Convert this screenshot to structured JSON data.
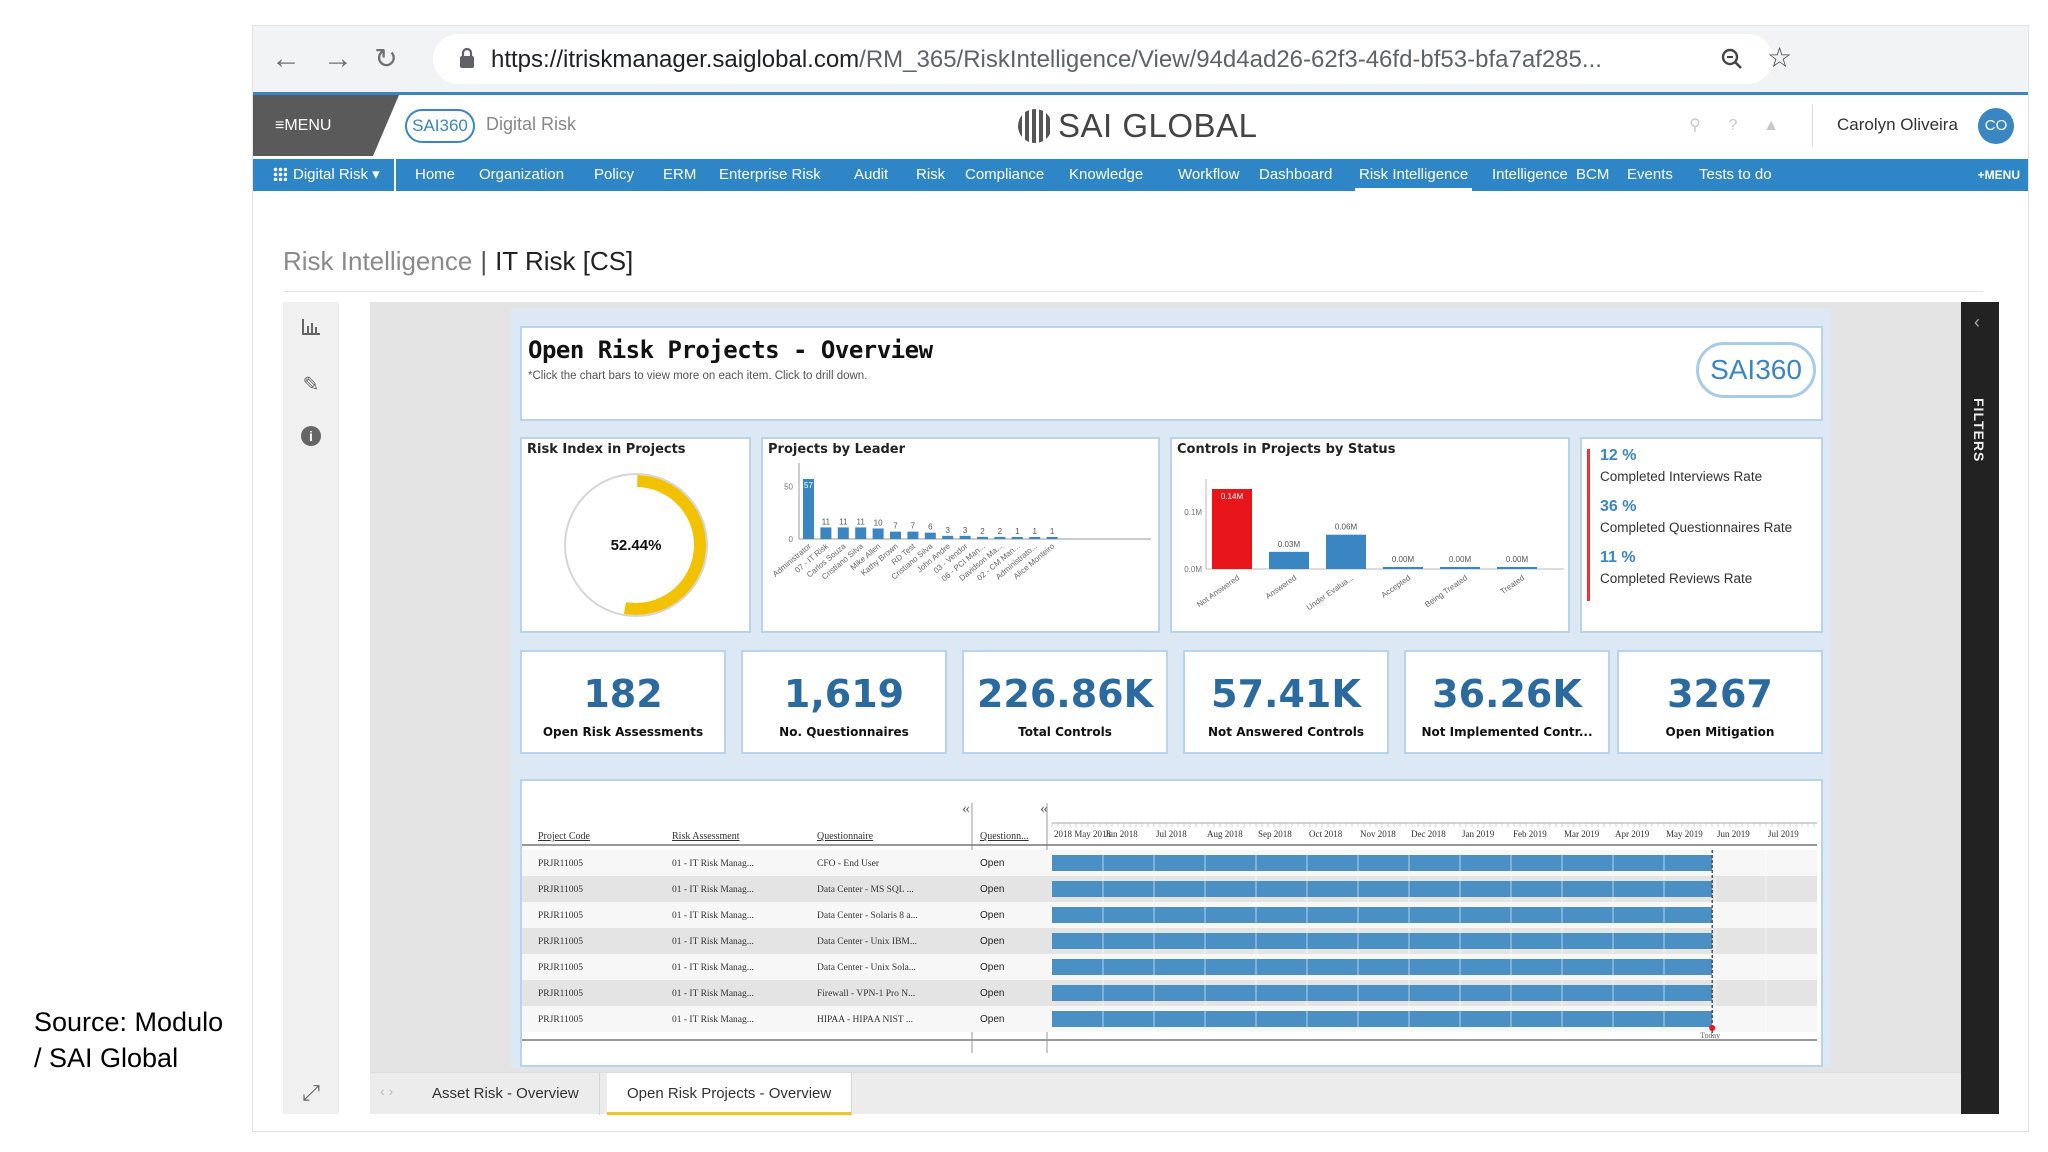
{
  "caption": {
    "line1": "Source: Modulo",
    "line2": "/ SAI Global"
  },
  "browser": {
    "url_main": "https://itriskmanager.saiglobal.com",
    "url_rest": "/RM_365/RiskIntelligence/View/94d4ad26-62f3-46fd-bf53-bfa7af285..."
  },
  "app_header": {
    "menu_label": "≡MENU",
    "logo_small": "SAI360",
    "product": "Digital Risk",
    "brand": "SAI GLOBAL",
    "user_name": "Carolyn Oliveira",
    "user_initials": "CO"
  },
  "nav": {
    "module": "Digital Risk",
    "items": [
      "Home",
      "Organization",
      "Policy",
      "ERM",
      "Enterprise Risk",
      "Audit",
      "Risk",
      "Compliance",
      "Knowledge",
      "Workflow",
      "Dashboard",
      "Risk Intelligence",
      "Intelligence",
      "BCM",
      "Events",
      "Tests to do"
    ],
    "active": "Risk Intelligence",
    "plus_menu": "+MENU"
  },
  "page": {
    "crumb": "Risk Intelligence",
    "separator": "|",
    "current": "IT Risk [CS]"
  },
  "dashboard": {
    "title": "Open Risk Projects - Overview",
    "subtitle": "*Click the chart bars to view more on each item. Click to drill down.",
    "logo": "SAI360"
  },
  "risk_index": {
    "title": "Risk Index in Projects",
    "value_label": "52.44%",
    "value": 52.44
  },
  "rates": [
    {
      "value": "12 %",
      "label": "Completed Interviews Rate"
    },
    {
      "value": "36 %",
      "label": "Completed Questionnaires Rate"
    },
    {
      "value": "11 %",
      "label": "Completed Reviews Rate"
    }
  ],
  "kpis": [
    {
      "value": "182",
      "label": "Open Risk Assessments"
    },
    {
      "value": "1,619",
      "label": "No. Questionnaires"
    },
    {
      "value": "226.86K",
      "label": "Total Controls"
    },
    {
      "value": "57.41K",
      "label": "Not Answered Controls"
    },
    {
      "value": "36.26K",
      "label": "Not Implemented Contr..."
    },
    {
      "value": "3267",
      "label": "Open Mitigation"
    }
  ],
  "chart_data": [
    {
      "type": "bar",
      "title": "Projects by Leader",
      "categories": [
        "Administrator",
        "07 - IT Risk",
        "Carlos Souza",
        "Cristiano Silva",
        "Mike Allen",
        "Kathy Brown",
        "RD Test",
        "Cristiano Silva",
        "John Andre",
        "03 - Vendor",
        "06 - PCI Man...",
        "Davidson Ma...",
        "02 - CM Man...",
        "Administrato...",
        "Alice Monteiro"
      ],
      "values": [
        57,
        11,
        11,
        11,
        10,
        7,
        7,
        6,
        3,
        3,
        2,
        2,
        1,
        1,
        1
      ],
      "yticks": [
        0,
        50
      ],
      "color": "#3a86c3"
    },
    {
      "type": "bar",
      "title": "Controls in Projects by Status",
      "categories": [
        "Not Answered",
        "Answered",
        "Under Evalua...",
        "Accepted",
        "Being Treated",
        "Treated"
      ],
      "values": [
        0.14,
        0.03,
        0.06,
        0.0,
        0.0,
        0.0
      ],
      "value_labels": [
        "0.14M",
        "0.03M",
        "0.06M",
        "0.00M",
        "0.00M",
        "0.00M"
      ],
      "yticks": [
        "0.0M",
        "0.1M"
      ],
      "colors": [
        "#e8151b",
        "#3a86c3",
        "#3a86c3",
        "#3a86c3",
        "#3a86c3",
        "#3a86c3"
      ]
    }
  ],
  "gantt": {
    "columns": [
      "Project Code",
      "Risk Assessment",
      "Questionnaire",
      "Questionn..."
    ],
    "months": [
      "2018 May 2018",
      "Jun 2018",
      "Jul 2018",
      "Aug 2018",
      "Sep 2018",
      "Oct 2018",
      "Nov 2018",
      "Dec 2018",
      "Jan 2019",
      "Feb 2019",
      "Mar 2019",
      "Apr 2019",
      "May 2019",
      "Jun 2019",
      "Jul 2019"
    ],
    "rows": [
      {
        "code": "PRJR11005",
        "assessment": "01 - IT Risk Manag...",
        "questionnaire": "CFO - End User",
        "status": "Open"
      },
      {
        "code": "PRJR11005",
        "assessment": "01 - IT Risk Manag...",
        "questionnaire": "Data Center - MS SQL ...",
        "status": "Open"
      },
      {
        "code": "PRJR11005",
        "assessment": "01 - IT Risk Manag...",
        "questionnaire": "Data Center - Solaris 8 a...",
        "status": "Open"
      },
      {
        "code": "PRJR11005",
        "assessment": "01 - IT Risk Manag...",
        "questionnaire": "Data Center - Unix IBM...",
        "status": "Open"
      },
      {
        "code": "PRJR11005",
        "assessment": "01 - IT Risk Manag...",
        "questionnaire": "Data Center - Unix Sola...",
        "status": "Open"
      },
      {
        "code": "PRJR11005",
        "assessment": "01 - IT Risk Manag...",
        "questionnaire": "Firewall - VPN-1 Pro N...",
        "status": "Open"
      },
      {
        "code": "PRJR11005",
        "assessment": "01 - IT Risk Manag...",
        "questionnaire": "HIPAA - HIPAA NIST ...",
        "status": "Open"
      }
    ],
    "collapse_glyph": "«",
    "marker_label": "Today"
  },
  "tabs": [
    "Asset Risk - Overview",
    "Open Risk Projects - Overview"
  ],
  "active_tab": "Open Risk Projects - Overview",
  "filters_label": "FILTERS",
  "colors": {
    "accent": "#2f86c6",
    "kpi": "#2b6a9e",
    "alert": "#e8151b",
    "donut": "#f2c200"
  }
}
